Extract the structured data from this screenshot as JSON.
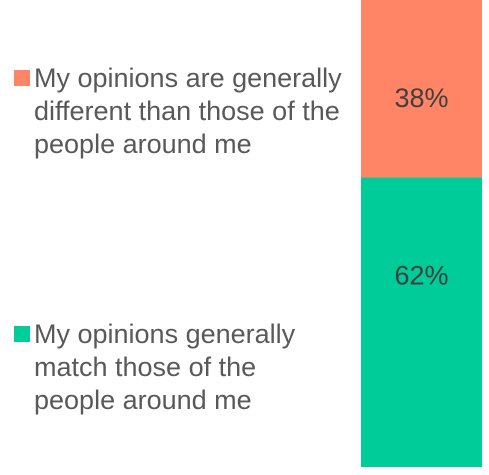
{
  "chart_data": {
    "type": "bar",
    "stacked": true,
    "categories": [
      ""
    ],
    "series": [
      {
        "name": "My opinions generally match those of the people around me",
        "values": [
          62
        ],
        "label": "62%",
        "color": "#00CC99"
      },
      {
        "name": "My opinions are generally different than those of the people around me",
        "values": [
          38
        ],
        "label": "38%",
        "color": "#FF8566"
      }
    ],
    "ylim": [
      0,
      100
    ],
    "grid": false,
    "legend_position": "left"
  }
}
